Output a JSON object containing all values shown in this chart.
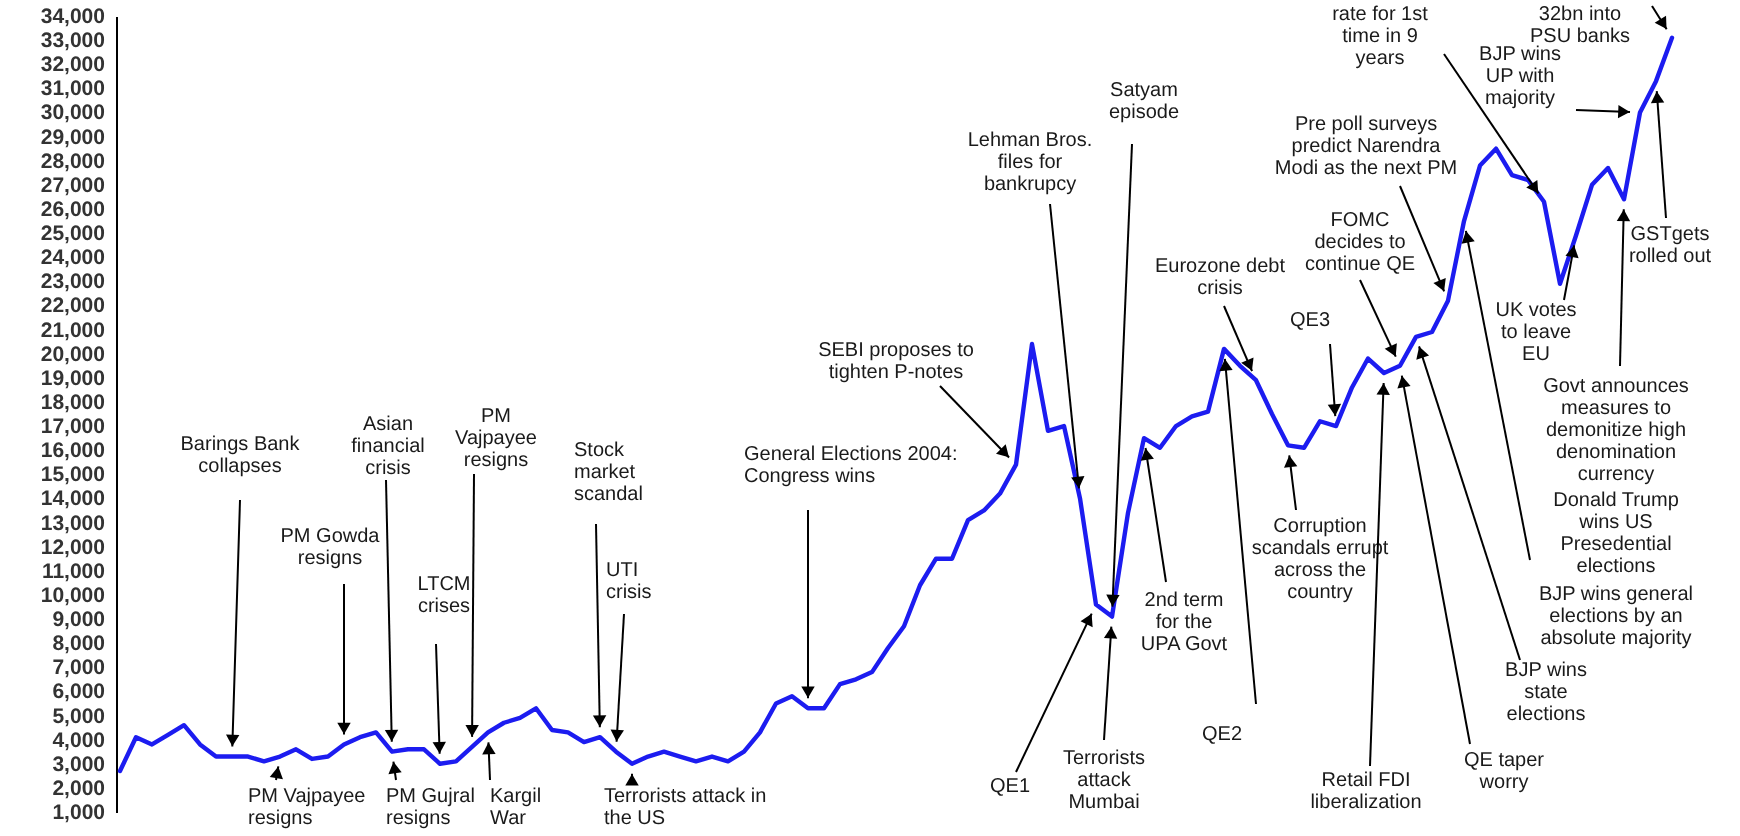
{
  "chart_data": {
    "type": "line",
    "categories": [
      null,
      null,
      null,
      null,
      null,
      null,
      null,
      null,
      null,
      null,
      null,
      null,
      null,
      null,
      null,
      null,
      null,
      null,
      null,
      null,
      null,
      null,
      null,
      null,
      null,
      null,
      null,
      null,
      null,
      null,
      null,
      null,
      null,
      null,
      null,
      null,
      null,
      null,
      null,
      null,
      null,
      null,
      null,
      null,
      null,
      null,
      null,
      null,
      null,
      null,
      null,
      null,
      null,
      null,
      null,
      null,
      null,
      null,
      null,
      null,
      null,
      null,
      null,
      null,
      null,
      null,
      null,
      null,
      null,
      null,
      null,
      null,
      null,
      null,
      null,
      null,
      null,
      null,
      null,
      null,
      null,
      null,
      null,
      null,
      null,
      null,
      null,
      null,
      null,
      null,
      null,
      null,
      null,
      null,
      null,
      null,
      null,
      null
    ],
    "series": [
      {
        "color": "#1c1cf0",
        "values": [
          2700,
          4100,
          3800,
          4200,
          4600,
          3800,
          3300,
          3300,
          3300,
          3100,
          3300,
          3600,
          3200,
          3300,
          3800,
          4100,
          4300,
          3500,
          3600,
          3600,
          3000,
          3100,
          3700,
          4300,
          4700,
          4900,
          5300,
          4400,
          4300,
          3900,
          4100,
          3500,
          3000,
          3300,
          3500,
          3300,
          3100,
          3300,
          3100,
          3500,
          4300,
          5500,
          5800,
          5300,
          5300,
          6300,
          6500,
          6800,
          7800,
          8700,
          10400,
          11500,
          11500,
          13100,
          13500,
          14200,
          15400,
          20400,
          16800,
          17000,
          14000,
          9600,
          9100,
          13400,
          16500,
          16100,
          17000,
          17400,
          17600,
          20200,
          19500,
          18900,
          17500,
          16200,
          16100,
          17200,
          17000,
          18600,
          19800,
          19200,
          19500,
          20700,
          20900,
          22200,
          25500,
          27800,
          28500,
          27400,
          27200,
          26300,
          22900,
          24900,
          27000,
          27700,
          26400,
          30000,
          31300,
          33100
        ]
      }
    ],
    "ylim": [
      1000,
      34000
    ],
    "yticks": [
      {
        "value": 1000,
        "label": "1,000"
      },
      {
        "value": 2000,
        "label": "2,000"
      },
      {
        "value": 3000,
        "label": "3,000"
      },
      {
        "value": 4000,
        "label": "4,000"
      },
      {
        "value": 5000,
        "label": "5,000"
      },
      {
        "value": 6000,
        "label": "6,000"
      },
      {
        "value": 7000,
        "label": "7,000"
      },
      {
        "value": 8000,
        "label": "8,000"
      },
      {
        "value": 9000,
        "label": "9,000"
      },
      {
        "value": 10000,
        "label": "10,000"
      },
      {
        "value": 11000,
        "label": "11,000"
      },
      {
        "value": 12000,
        "label": "12,000"
      },
      {
        "value": 13000,
        "label": "13,000"
      },
      {
        "value": 14000,
        "label": "14,000"
      },
      {
        "value": 15000,
        "label": "15,000"
      },
      {
        "value": 16000,
        "label": "16,000"
      },
      {
        "value": 17000,
        "label": "17,000"
      },
      {
        "value": 18000,
        "label": "18,000"
      },
      {
        "value": 19000,
        "label": "19,000"
      },
      {
        "value": 20000,
        "label": "20,000"
      },
      {
        "value": 21000,
        "label": "21,000"
      },
      {
        "value": 22000,
        "label": "22,000"
      },
      {
        "value": 23000,
        "label": "23,000"
      },
      {
        "value": 24000,
        "label": "24,000"
      },
      {
        "value": 25000,
        "label": "25,000"
      },
      {
        "value": 26000,
        "label": "26,000"
      },
      {
        "value": 27000,
        "label": "27,000"
      },
      {
        "value": 28000,
        "label": "28,000"
      },
      {
        "value": 29000,
        "label": "29,000"
      },
      {
        "value": 30000,
        "label": "30,000"
      },
      {
        "value": 31000,
        "label": "31,000"
      },
      {
        "value": 32000,
        "label": "32,000"
      },
      {
        "value": 33000,
        "label": "33,000"
      },
      {
        "value": 34000,
        "label": "34,000"
      }
    ],
    "grid": false,
    "tick_labels": "y",
    "annotations": [
      "Barings Bank collapses",
      "PM Vajpayee resigns",
      "PM Gowda resigns",
      "Asian financial crisis",
      "PM Gujral resigns",
      "LTCM crises",
      "PM Vajpayee resigns",
      "Kargil War",
      "Stock market scandal",
      "UTI crisis",
      "Terrorists attack in the US",
      "General Elections 2004: Congress wins",
      "SEBI proposes to tighten P-notes",
      "Lehman Bros. files for bankrupcy",
      "Satyam episode",
      "QE1",
      "Terrorists attack Mumbai",
      "2nd term for the UPA Govt",
      "Eurozone debt crisis",
      "QE2",
      "Corruption scandals errupt across the country",
      "QE3",
      "FOMC decides to continue QE",
      "Retail FDI liberalization",
      "QE taper worry",
      "BJP wins state elections",
      "BJP wins general elections by an absolute majority",
      "Pre poll surveys predict Narendra Modi as the next PM",
      "Donald Trump wins US Presedential elections",
      "Govt announces measures to demonitize high denomination currency",
      "UK votes to leave EU",
      "GSTgets rolled out",
      "BJP wins UP with majority",
      "rate for 1st time in 9 years",
      "32bn into PSU banks"
    ]
  }
}
